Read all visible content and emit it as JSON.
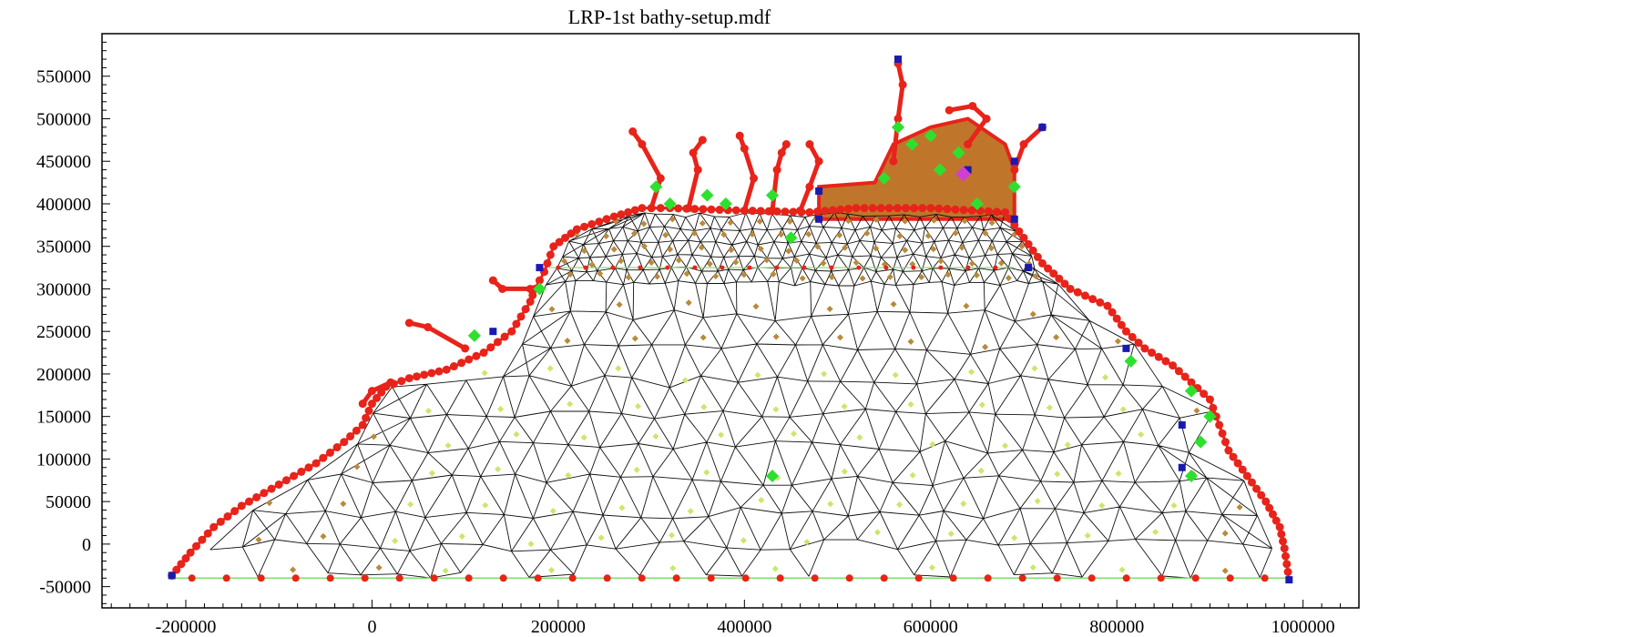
{
  "title": "LRP-1st bathy-setup.mdf",
  "chart_data": {
    "type": "mesh",
    "title": "LRP-1st bathy-setup.mdf",
    "xlim": [
      -290000,
      1060000
    ],
    "ylim": [
      -75000,
      600000
    ],
    "x_ticks": [
      "-200000",
      "0",
      "200000",
      "400000",
      "600000",
      "800000",
      "1000000"
    ],
    "x_tick_values": [
      -200000,
      0,
      200000,
      400000,
      600000,
      800000,
      1000000
    ],
    "y_ticks": [
      "-50000",
      "0",
      "50000",
      "100000",
      "150000",
      "200000",
      "250000",
      "300000",
      "350000",
      "400000",
      "450000",
      "500000",
      "550000"
    ],
    "y_tick_values": [
      -50000,
      0,
      50000,
      100000,
      150000,
      200000,
      250000,
      300000,
      350000,
      400000,
      450000,
      500000,
      550000
    ],
    "boundary": [
      [
        -215000,
        -37000
      ],
      [
        -195000,
        -10000
      ],
      [
        -170000,
        20000
      ],
      [
        -140000,
        45000
      ],
      [
        -100000,
        70000
      ],
      [
        -60000,
        95000
      ],
      [
        -30000,
        120000
      ],
      [
        -10000,
        140000
      ],
      [
        0,
        165000
      ],
      [
        15000,
        185000
      ],
      [
        40000,
        195000
      ],
      [
        80000,
        205000
      ],
      [
        120000,
        225000
      ],
      [
        150000,
        250000
      ],
      [
        170000,
        285000
      ],
      [
        175000,
        300000
      ],
      [
        185000,
        320000
      ],
      [
        195000,
        350000
      ],
      [
        220000,
        370000
      ],
      [
        260000,
        385000
      ],
      [
        290000,
        395000
      ],
      [
        320000,
        395000
      ],
      [
        400000,
        392000
      ],
      [
        470000,
        390000
      ],
      [
        520000,
        395000
      ],
      [
        600000,
        395000
      ],
      [
        680000,
        390000
      ],
      [
        700000,
        360000
      ],
      [
        720000,
        330000
      ],
      [
        750000,
        300000
      ],
      [
        790000,
        280000
      ],
      [
        810000,
        250000
      ],
      [
        830000,
        230000
      ],
      [
        860000,
        210000
      ],
      [
        880000,
        190000
      ],
      [
        900000,
        170000
      ],
      [
        910000,
        140000
      ],
      [
        920000,
        110000
      ],
      [
        940000,
        80000
      ],
      [
        960000,
        50000
      ],
      [
        975000,
        20000
      ],
      [
        980000,
        -5000
      ],
      [
        985000,
        -42000
      ]
    ],
    "open_boundary_y": -40000,
    "inner_boundary_y": 325000,
    "point_colors": {
      "mesh": "#111111",
      "land_boundary": "#e8231a",
      "deep_points": "#c8e86a",
      "shallow_points": "#b98a3a",
      "river_points": "#2ee02e",
      "sources": "#1a1ab0",
      "observation": "#d040d0",
      "fill": "#c0762a",
      "open_boundary": "#7fdc6e"
    }
  }
}
